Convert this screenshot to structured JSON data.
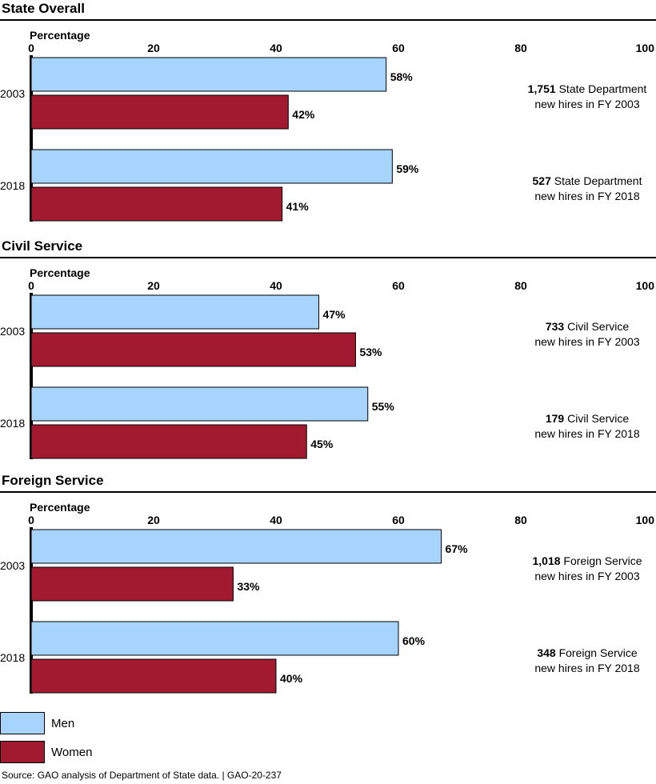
{
  "colors": {
    "men": "#a6d4fc",
    "women": "#a21a2f",
    "axis": "#000000"
  },
  "legend": {
    "men_label": "Men",
    "women_label": "Women"
  },
  "source": "Source: GAO analysis of Department of State data.  |  GAO-20-237",
  "chart_data": [
    {
      "type": "bar",
      "orientation": "horizontal",
      "title": "State Overall",
      "xlabel": "Percentage",
      "xlim": [
        0,
        100
      ],
      "xticks": [
        "0",
        "20",
        "40",
        "60",
        "80",
        "100"
      ],
      "categories": [
        "2003",
        "2018"
      ],
      "series": [
        {
          "name": "Men",
          "values": [
            58,
            59
          ],
          "labels": [
            "58%",
            "59%"
          ]
        },
        {
          "name": "Women",
          "values": [
            42,
            41
          ],
          "labels": [
            "42%",
            "41%"
          ]
        }
      ],
      "annotations": [
        {
          "count": "1,751",
          "text1": " State Department",
          "text2": "new hires in FY 2003"
        },
        {
          "count": "527",
          "text1": " State Department",
          "text2": "new hires in FY 2018"
        }
      ]
    },
    {
      "type": "bar",
      "orientation": "horizontal",
      "title": "Civil Service",
      "xlabel": "Percentage",
      "xlim": [
        0,
        100
      ],
      "xticks": [
        "0",
        "20",
        "40",
        "60",
        "80",
        "100"
      ],
      "categories": [
        "2003",
        "2018"
      ],
      "series": [
        {
          "name": "Men",
          "values": [
            47,
            55
          ],
          "labels": [
            "47%",
            "55%"
          ]
        },
        {
          "name": "Women",
          "values": [
            53,
            45
          ],
          "labels": [
            "53%",
            "45%"
          ]
        }
      ],
      "annotations": [
        {
          "count": "733",
          "text1": " Civil Service",
          "text2": "new hires in FY 2003"
        },
        {
          "count": "179",
          "text1": " Civil Service",
          "text2": "new hires in FY 2018"
        }
      ]
    },
    {
      "type": "bar",
      "orientation": "horizontal",
      "title": "Foreign Service",
      "xlabel": "Percentage",
      "xlim": [
        0,
        100
      ],
      "xticks": [
        "0",
        "20",
        "40",
        "60",
        "80",
        "100"
      ],
      "categories": [
        "2003",
        "2018"
      ],
      "series": [
        {
          "name": "Men",
          "values": [
            67,
            60
          ],
          "labels": [
            "67%",
            "60%"
          ]
        },
        {
          "name": "Women",
          "values": [
            33,
            40
          ],
          "labels": [
            "33%",
            "40%"
          ]
        }
      ],
      "annotations": [
        {
          "count": "1,018",
          "text1": " Foreign Service",
          "text2": "new hires in FY 2003"
        },
        {
          "count": "348",
          "text1": " Foreign Service",
          "text2": "new hires in FY 2018"
        }
      ]
    }
  ]
}
